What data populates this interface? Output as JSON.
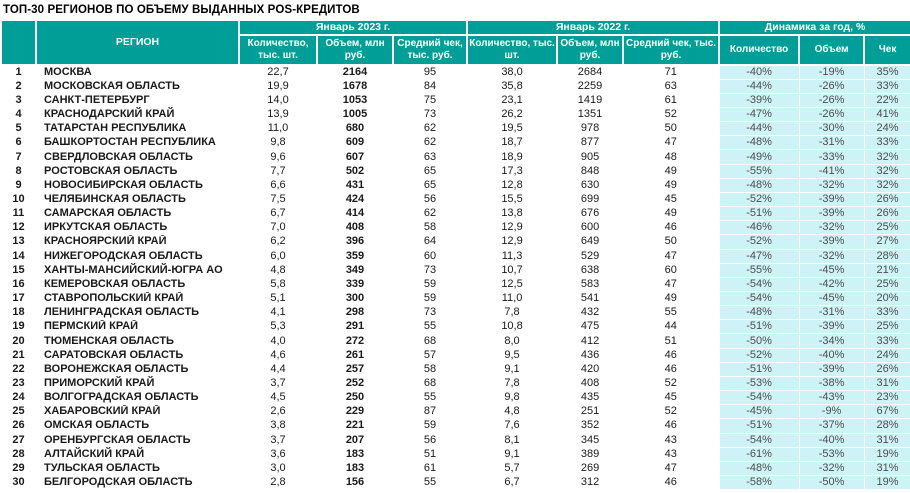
{
  "colors": {
    "header_teal": "#009E96",
    "dynamics_bg": "#CDF3F7",
    "body_text": "#1A1A1A",
    "dynamics_text": "#4D4D4D",
    "page_bg": "#FFFFFF"
  },
  "chart_data": {
    "type": "table",
    "title": "ТОП-30 РЕГИОНОВ ПО ОБЪЕМУ ВЫДАННЫХ POS-КРЕДИТОВ",
    "region_header": "РЕГИОН",
    "group_headers": [
      "Январь 2023 г.",
      "Январь 2022 г.",
      "Динамика за год, %"
    ],
    "sub_headers_2023": [
      "Количество,\nтыс. шт.",
      "Объем, млн\nруб.",
      "Средний чек,\nтыс. руб."
    ],
    "sub_headers_2022": [
      "Количество, тыс.\nшт.",
      "Объем, млн\nруб.",
      "Средний чек, тыс.\nруб."
    ],
    "sub_headers_dynamics": [
      "Количество",
      "Объем",
      "Чек"
    ],
    "rows": [
      [
        "1",
        "МОСКВА",
        "22,7",
        "2164",
        "95",
        "38,0",
        "2684",
        "71",
        "-40%",
        "-19%",
        "35%"
      ],
      [
        "2",
        "МОСКОВСКАЯ ОБЛАСТЬ",
        "19,9",
        "1678",
        "84",
        "35,8",
        "2259",
        "63",
        "-44%",
        "-26%",
        "33%"
      ],
      [
        "3",
        "САНКТ-ПЕТЕРБУРГ",
        "14,0",
        "1053",
        "75",
        "23,1",
        "1419",
        "61",
        "-39%",
        "-26%",
        "22%"
      ],
      [
        "4",
        "КРАСНОДАРСКИЙ КРАЙ",
        "13,9",
        "1005",
        "73",
        "26,2",
        "1351",
        "52",
        "-47%",
        "-26%",
        "41%"
      ],
      [
        "5",
        "ТАТАРСТАН РЕСПУБЛИКА",
        "11,0",
        "680",
        "62",
        "19,5",
        "978",
        "50",
        "-44%",
        "-30%",
        "24%"
      ],
      [
        "6",
        "БАШКОРТОСТАН РЕСПУБЛИКА",
        "9,8",
        "609",
        "62",
        "18,7",
        "877",
        "47",
        "-48%",
        "-31%",
        "33%"
      ],
      [
        "7",
        "СВЕРДЛОВСКАЯ ОБЛАСТЬ",
        "9,6",
        "607",
        "63",
        "18,9",
        "905",
        "48",
        "-49%",
        "-33%",
        "32%"
      ],
      [
        "8",
        "РОСТОВСКАЯ ОБЛАСТЬ",
        "7,7",
        "502",
        "65",
        "17,3",
        "848",
        "49",
        "-55%",
        "-41%",
        "32%"
      ],
      [
        "9",
        "НОВОСИБИРСКАЯ ОБЛАСТЬ",
        "6,6",
        "431",
        "65",
        "12,8",
        "630",
        "49",
        "-48%",
        "-32%",
        "32%"
      ],
      [
        "10",
        "ЧЕЛЯБИНСКАЯ ОБЛАСТЬ",
        "7,5",
        "424",
        "56",
        "15,5",
        "699",
        "45",
        "-52%",
        "-39%",
        "26%"
      ],
      [
        "11",
        "САМАРСКАЯ ОБЛАСТЬ",
        "6,7",
        "414",
        "62",
        "13,8",
        "676",
        "49",
        "-51%",
        "-39%",
        "26%"
      ],
      [
        "12",
        "ИРКУТСКАЯ ОБЛАСТЬ",
        "7,0",
        "408",
        "58",
        "12,9",
        "600",
        "46",
        "-46%",
        "-32%",
        "25%"
      ],
      [
        "13",
        "КРАСНОЯРСКИЙ КРАЙ",
        "6,2",
        "396",
        "64",
        "12,9",
        "649",
        "50",
        "-52%",
        "-39%",
        "27%"
      ],
      [
        "14",
        "НИЖЕГОРОДСКАЯ ОБЛАСТЬ",
        "6,0",
        "359",
        "60",
        "11,3",
        "529",
        "47",
        "-47%",
        "-32%",
        "28%"
      ],
      [
        "15",
        "ХАНТЫ-МАНСИЙСКИЙ-ЮГРА АО",
        "4,8",
        "349",
        "73",
        "10,7",
        "638",
        "60",
        "-55%",
        "-45%",
        "21%"
      ],
      [
        "16",
        "КЕМЕРОВСКАЯ ОБЛАСТЬ",
        "5,8",
        "339",
        "59",
        "12,5",
        "583",
        "47",
        "-54%",
        "-42%",
        "25%"
      ],
      [
        "17",
        "СТАВРОПОЛЬСКИЙ КРАЙ",
        "5,1",
        "300",
        "59",
        "11,0",
        "541",
        "49",
        "-54%",
        "-45%",
        "20%"
      ],
      [
        "18",
        "ЛЕНИНГРАДСКАЯ ОБЛАСТЬ",
        "4,1",
        "298",
        "73",
        "7,8",
        "432",
        "55",
        "-48%",
        "-31%",
        "33%"
      ],
      [
        "19",
        "ПЕРМСКИЙ КРАЙ",
        "5,3",
        "291",
        "55",
        "10,8",
        "475",
        "44",
        "-51%",
        "-39%",
        "25%"
      ],
      [
        "20",
        "ТЮМЕНСКАЯ ОБЛАСТЬ",
        "4,0",
        "272",
        "68",
        "8,0",
        "412",
        "51",
        "-50%",
        "-34%",
        "33%"
      ],
      [
        "21",
        "САРАТОВСКАЯ ОБЛАСТЬ",
        "4,6",
        "261",
        "57",
        "9,5",
        "436",
        "46",
        "-52%",
        "-40%",
        "24%"
      ],
      [
        "22",
        "ВОРОНЕЖСКАЯ ОБЛАСТЬ",
        "4,4",
        "257",
        "58",
        "9,1",
        "420",
        "46",
        "-51%",
        "-39%",
        "26%"
      ],
      [
        "23",
        "ПРИМОРСКИЙ КРАЙ",
        "3,7",
        "252",
        "68",
        "7,8",
        "408",
        "52",
        "-53%",
        "-38%",
        "31%"
      ],
      [
        "24",
        "ВОЛГОГРАДСКАЯ ОБЛАСТЬ",
        "4,5",
        "250",
        "55",
        "9,8",
        "435",
        "45",
        "-54%",
        "-43%",
        "23%"
      ],
      [
        "25",
        "ХАБАРОВСКИЙ КРАЙ",
        "2,6",
        "229",
        "87",
        "4,8",
        "251",
        "52",
        "-45%",
        "-9%",
        "67%"
      ],
      [
        "26",
        "ОМСКАЯ ОБЛАСТЬ",
        "3,8",
        "221",
        "59",
        "7,6",
        "352",
        "46",
        "-51%",
        "-37%",
        "28%"
      ],
      [
        "27",
        "ОРЕНБУРГСКАЯ ОБЛАСТЬ",
        "3,7",
        "207",
        "56",
        "8,1",
        "345",
        "43",
        "-54%",
        "-40%",
        "31%"
      ],
      [
        "28",
        "АЛТАЙСКИЙ КРАЙ",
        "3,6",
        "183",
        "51",
        "9,1",
        "389",
        "43",
        "-61%",
        "-53%",
        "19%"
      ],
      [
        "29",
        "ТУЛЬСКАЯ ОБЛАСТЬ",
        "3,0",
        "183",
        "61",
        "5,7",
        "269",
        "47",
        "-48%",
        "-32%",
        "31%"
      ],
      [
        "30",
        "БЕЛГОРОДСКАЯ ОБЛАСТЬ",
        "2,8",
        "156",
        "55",
        "6,7",
        "312",
        "46",
        "-58%",
        "-50%",
        "19%"
      ]
    ]
  }
}
